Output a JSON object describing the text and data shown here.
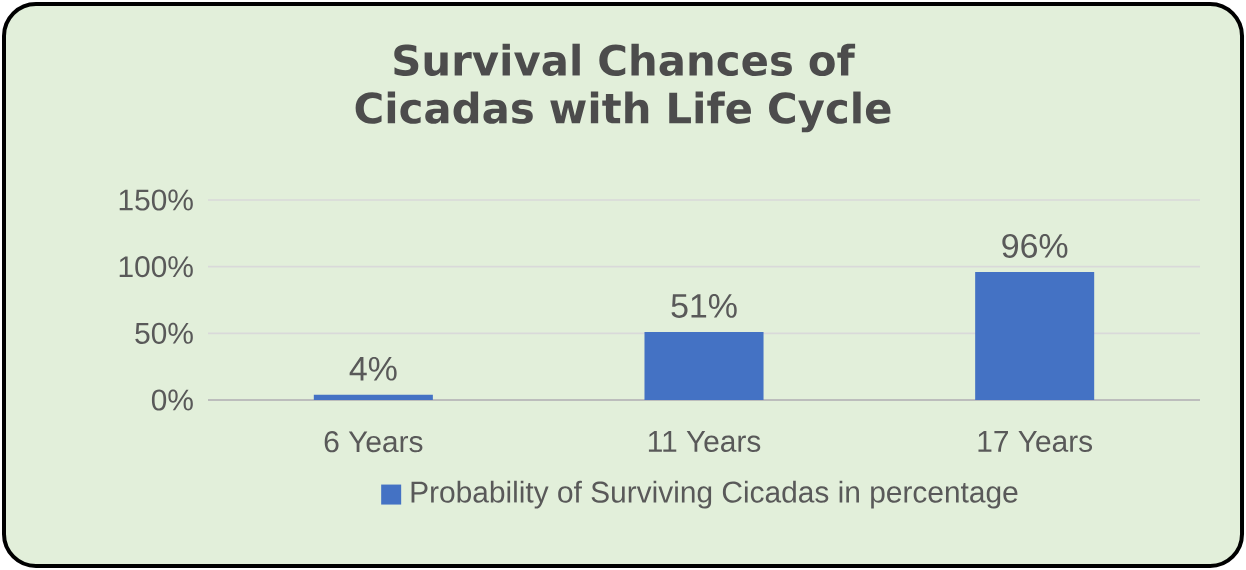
{
  "chart_data": {
    "type": "bar",
    "title": "Survival Chances of Cicadas with Life Cycle",
    "categories": [
      "6 Years",
      "11 Years",
      "17 Years"
    ],
    "series": [
      {
        "name": "Probability of Surviving Cicadas in percentage",
        "color": "#4472c4",
        "values": [
          4,
          51,
          96
        ],
        "value_labels": [
          "4%",
          "51%",
          "96%"
        ]
      }
    ],
    "ylim": [
      0,
      150
    ],
    "yticks": [
      {
        "value": 0,
        "label": "0%"
      },
      {
        "value": 50,
        "label": "50%"
      },
      {
        "value": 100,
        "label": "100%"
      },
      {
        "value": 150,
        "label": "150%"
      }
    ],
    "grid": "y",
    "legend": "bottom"
  }
}
